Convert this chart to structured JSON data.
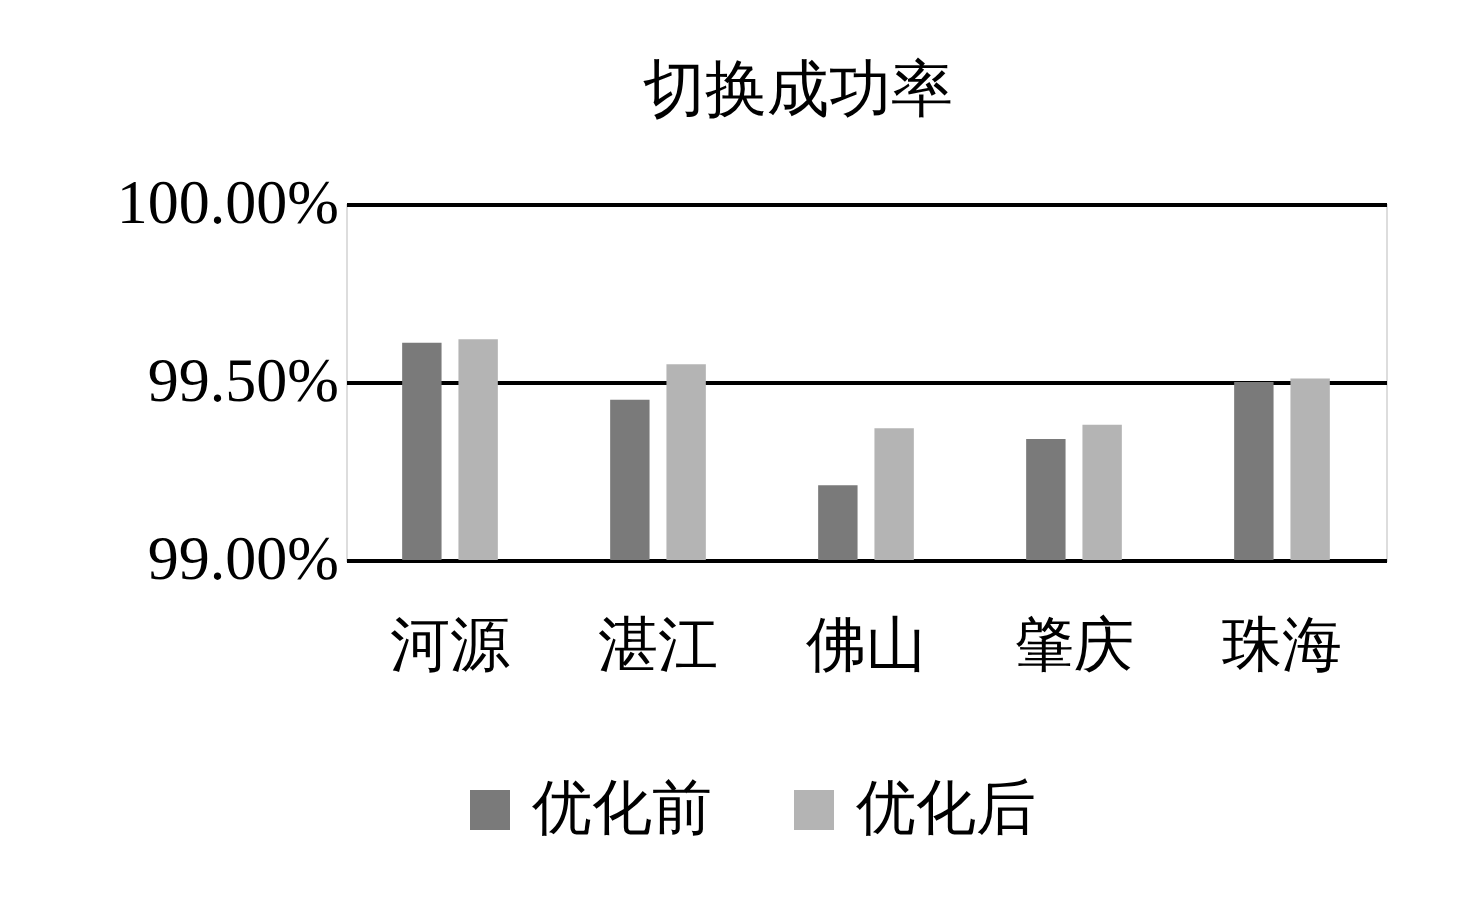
{
  "chart_data": {
    "type": "bar",
    "title": "切换成功率",
    "categories": [
      "河源",
      "湛江",
      "佛山",
      "肇庆",
      "珠海"
    ],
    "series": [
      {
        "name": "优化前",
        "color": "#7a7a7a",
        "values": [
          99.61,
          99.45,
          99.21,
          99.34,
          99.5
        ]
      },
      {
        "name": "优化后",
        "color": "#b4b4b4",
        "values": [
          99.62,
          99.55,
          99.37,
          99.38,
          99.51
        ]
      }
    ],
    "ylim": [
      99,
      100
    ],
    "yticks": [
      {
        "value": 99,
        "label": "99.00%"
      },
      {
        "value": 99.5,
        "label": "99.50%"
      },
      {
        "value": 100,
        "label": "100.00%"
      }
    ],
    "grid": "y",
    "legend": "bottom"
  }
}
